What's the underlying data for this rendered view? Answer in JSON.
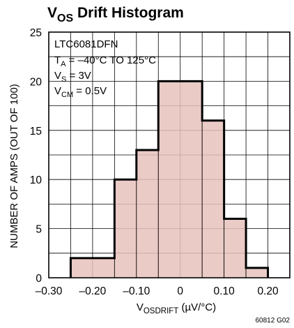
{
  "chart_data": {
    "type": "bar",
    "title_main": "V",
    "title_sub": "OS",
    "title_rest": " Drift Histogram",
    "ylabel": "NUMBER OF AMPS (OUT OF 100)",
    "xlabel_main": "V",
    "xlabel_sub": "OSDRIFT",
    "xlabel_rest": " (µV/°C)",
    "xlim": [
      -0.3,
      0.25
    ],
    "ylim": [
      0,
      25
    ],
    "x_ticks": [
      -0.3,
      -0.2,
      -0.1,
      0,
      0.1,
      0.2
    ],
    "x_tick_labels": [
      "–0.30",
      "–0.20",
      "–0.10",
      "0",
      "0.10",
      "0.20"
    ],
    "y_ticks": [
      0,
      5,
      10,
      15,
      20,
      25
    ],
    "y_tick_labels": [
      "0",
      "5",
      "10",
      "15",
      "20",
      "25"
    ],
    "grid": true,
    "bins": [
      {
        "x0": -0.25,
        "x1": -0.15,
        "value": 2
      },
      {
        "x0": -0.15,
        "x1": -0.1,
        "value": 10
      },
      {
        "x0": -0.1,
        "x1": -0.05,
        "value": 13
      },
      {
        "x0": -0.05,
        "x1": 0.05,
        "value": 20
      },
      {
        "x0": 0.05,
        "x1": 0.1,
        "value": 16
      },
      {
        "x0": 0.1,
        "x1": 0.15,
        "value": 6
      },
      {
        "x0": 0.15,
        "x1": 0.2,
        "value": 1
      }
    ],
    "bar_fill": "#e6c2bc",
    "bar_stroke": "#000000",
    "annotations": [
      {
        "main": "LTC6081DFN",
        "sub": "",
        "rest": ""
      },
      {
        "main": "T",
        "sub": "A",
        "rest": " = –40°C TO 125°C"
      },
      {
        "main": "V",
        "sub": "S",
        "rest": " = 3V"
      },
      {
        "main": "V",
        "sub": "CM",
        "rest": " = 0.5V"
      }
    ],
    "figure_code": "60812 G02"
  }
}
